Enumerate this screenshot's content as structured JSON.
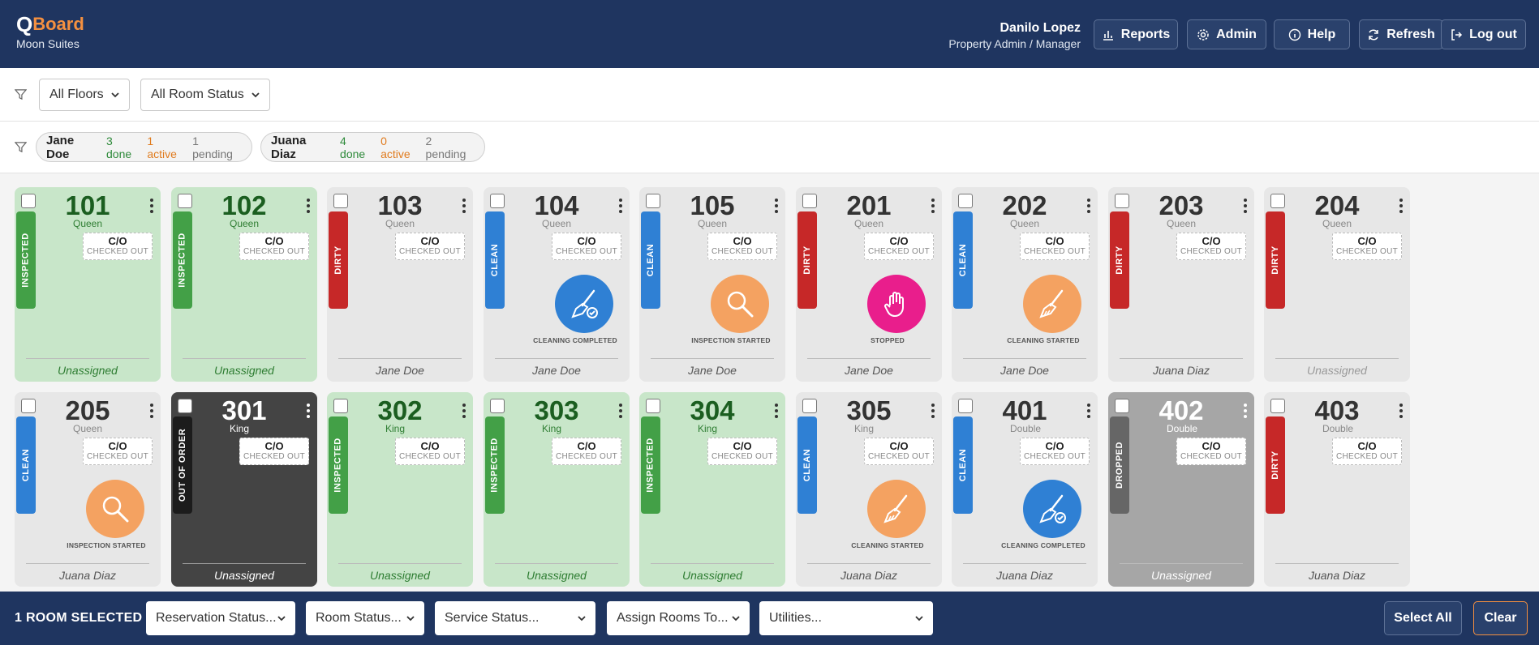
{
  "header": {
    "logo_q": "Q",
    "logo_board": "Board",
    "property": "Moon Suites",
    "user_name": "Danilo Lopez",
    "user_role": "Property Admin / Manager",
    "buttons": {
      "reports": "Reports",
      "admin": "Admin",
      "help": "Help",
      "refresh": "Refresh",
      "logout": "Log out"
    }
  },
  "filters": {
    "floors": "All Floors",
    "room_status": "All Room Status"
  },
  "housekeepers": [
    {
      "name": "Jane Doe",
      "done": "3 done",
      "active": "1 active",
      "pending": "1 pending"
    },
    {
      "name": "Juana Diaz",
      "done": "4 done",
      "active": "0 active",
      "pending": "2 pending"
    }
  ],
  "rooms": [
    {
      "number": "101",
      "type": "Queen",
      "status": "INSPECTED",
      "co_code": "C/O",
      "co_label": "CHECKED OUT",
      "service": "",
      "assignee": "Unassigned"
    },
    {
      "number": "102",
      "type": "Queen",
      "status": "INSPECTED",
      "co_code": "C/O",
      "co_label": "CHECKED OUT",
      "service": "",
      "assignee": "Unassigned"
    },
    {
      "number": "103",
      "type": "Queen",
      "status": "DIRTY",
      "co_code": "C/O",
      "co_label": "CHECKED OUT",
      "service": "",
      "assignee": "Jane Doe"
    },
    {
      "number": "104",
      "type": "Queen",
      "status": "CLEAN",
      "co_code": "C/O",
      "co_label": "CHECKED OUT",
      "service": "CLEANING COMPLETED",
      "assignee": "Jane Doe"
    },
    {
      "number": "105",
      "type": "Queen",
      "status": "CLEAN",
      "co_code": "C/O",
      "co_label": "CHECKED OUT",
      "service": "INSPECTION STARTED",
      "assignee": "Jane Doe"
    },
    {
      "number": "201",
      "type": "Queen",
      "status": "DIRTY",
      "co_code": "C/O",
      "co_label": "CHECKED OUT",
      "service": "STOPPED",
      "assignee": "Jane Doe"
    },
    {
      "number": "202",
      "type": "Queen",
      "status": "CLEAN",
      "co_code": "C/O",
      "co_label": "CHECKED OUT",
      "service": "CLEANING STARTED",
      "assignee": "Jane Doe"
    },
    {
      "number": "203",
      "type": "Queen",
      "status": "DIRTY",
      "co_code": "C/O",
      "co_label": "CHECKED OUT",
      "service": "",
      "assignee": "Juana Diaz"
    },
    {
      "number": "204",
      "type": "Queen",
      "status": "DIRTY",
      "co_code": "C/O",
      "co_label": "CHECKED OUT",
      "service": "",
      "assignee": "Unassigned"
    },
    {
      "number": "205",
      "type": "Queen",
      "status": "CLEAN",
      "co_code": "C/O",
      "co_label": "CHECKED OUT",
      "service": "INSPECTION STARTED",
      "assignee": "Juana Diaz"
    },
    {
      "number": "301",
      "type": "King",
      "status": "OUT OF ORDER",
      "co_code": "C/O",
      "co_label": "CHECKED OUT",
      "service": "",
      "assignee": "Unassigned"
    },
    {
      "number": "302",
      "type": "King",
      "status": "INSPECTED",
      "co_code": "C/O",
      "co_label": "CHECKED OUT",
      "service": "",
      "assignee": "Unassigned"
    },
    {
      "number": "303",
      "type": "King",
      "status": "INSPECTED",
      "co_code": "C/O",
      "co_label": "CHECKED OUT",
      "service": "",
      "assignee": "Unassigned"
    },
    {
      "number": "304",
      "type": "King",
      "status": "INSPECTED",
      "co_code": "C/O",
      "co_label": "CHECKED OUT",
      "service": "",
      "assignee": "Unassigned"
    },
    {
      "number": "305",
      "type": "King",
      "status": "CLEAN",
      "co_code": "C/O",
      "co_label": "CHECKED OUT",
      "service": "CLEANING STARTED",
      "assignee": "Juana Diaz"
    },
    {
      "number": "401",
      "type": "Double",
      "status": "CLEAN",
      "co_code": "C/O",
      "co_label": "CHECKED OUT",
      "service": "CLEANING COMPLETED",
      "assignee": "Juana Diaz"
    },
    {
      "number": "402",
      "type": "Double",
      "status": "DROPPED",
      "co_code": "C/O",
      "co_label": "CHECKED OUT",
      "service": "",
      "assignee": "Unassigned"
    },
    {
      "number": "403",
      "type": "Double",
      "status": "DIRTY",
      "co_code": "C/O",
      "co_label": "CHECKED OUT",
      "service": "",
      "assignee": "Juana Diaz"
    }
  ],
  "footer": {
    "selected": "1 ROOM SELECTED",
    "reservation_status": "Reservation Status...",
    "room_status": "Room Status...",
    "service_status": "Service Status...",
    "assign_rooms": "Assign Rooms To...",
    "utilities": "Utilities...",
    "select_all": "Select All",
    "clear": "Clear"
  },
  "colors": {
    "navy": "#1f3560",
    "accent_orange": "#f49040",
    "inspected": "#43a047",
    "dirty": "#c62828",
    "clean": "#2f80d4",
    "out_of_order": "#1c1c1c",
    "dropped": "#666666",
    "service_blue": "#2f80d4",
    "service_orange": "#f4a261",
    "service_pink": "#e91e8c"
  }
}
